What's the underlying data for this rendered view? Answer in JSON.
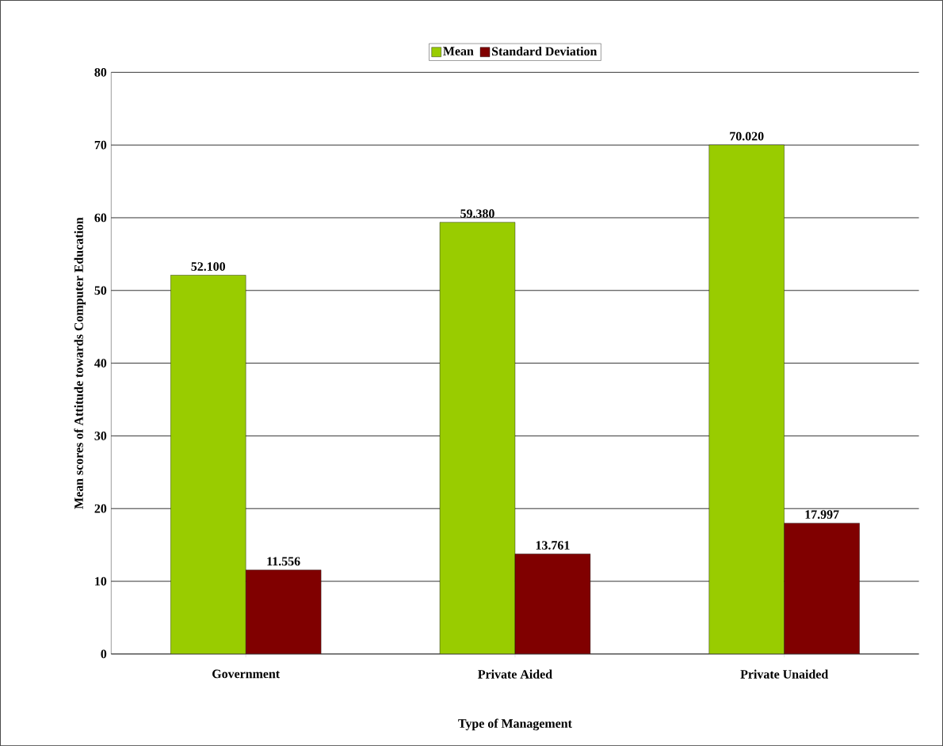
{
  "chart_data": {
    "type": "bar",
    "xlabel": "Type of Management",
    "ylabel": "Mean scores of Attitude towards Computer Education",
    "categories": [
      "Government",
      "Private Aided",
      "Private Unaided"
    ],
    "series": [
      {
        "name": "Mean",
        "color": "#99cc00",
        "values": [
          52.1,
          59.38,
          70.02
        ],
        "value_labels": [
          "52.100",
          "59.380",
          "70.020"
        ]
      },
      {
        "name": "Standard Deviation",
        "color": "#800000",
        "values": [
          11.556,
          13.761,
          17.997
        ],
        "value_labels": [
          "11.556",
          "13.761",
          "17.997"
        ]
      }
    ],
    "ylim": [
      0,
      80
    ],
    "yticks": [
      0,
      10,
      20,
      30,
      40,
      50,
      60,
      70,
      80
    ],
    "grid": "y",
    "legend": "top"
  }
}
